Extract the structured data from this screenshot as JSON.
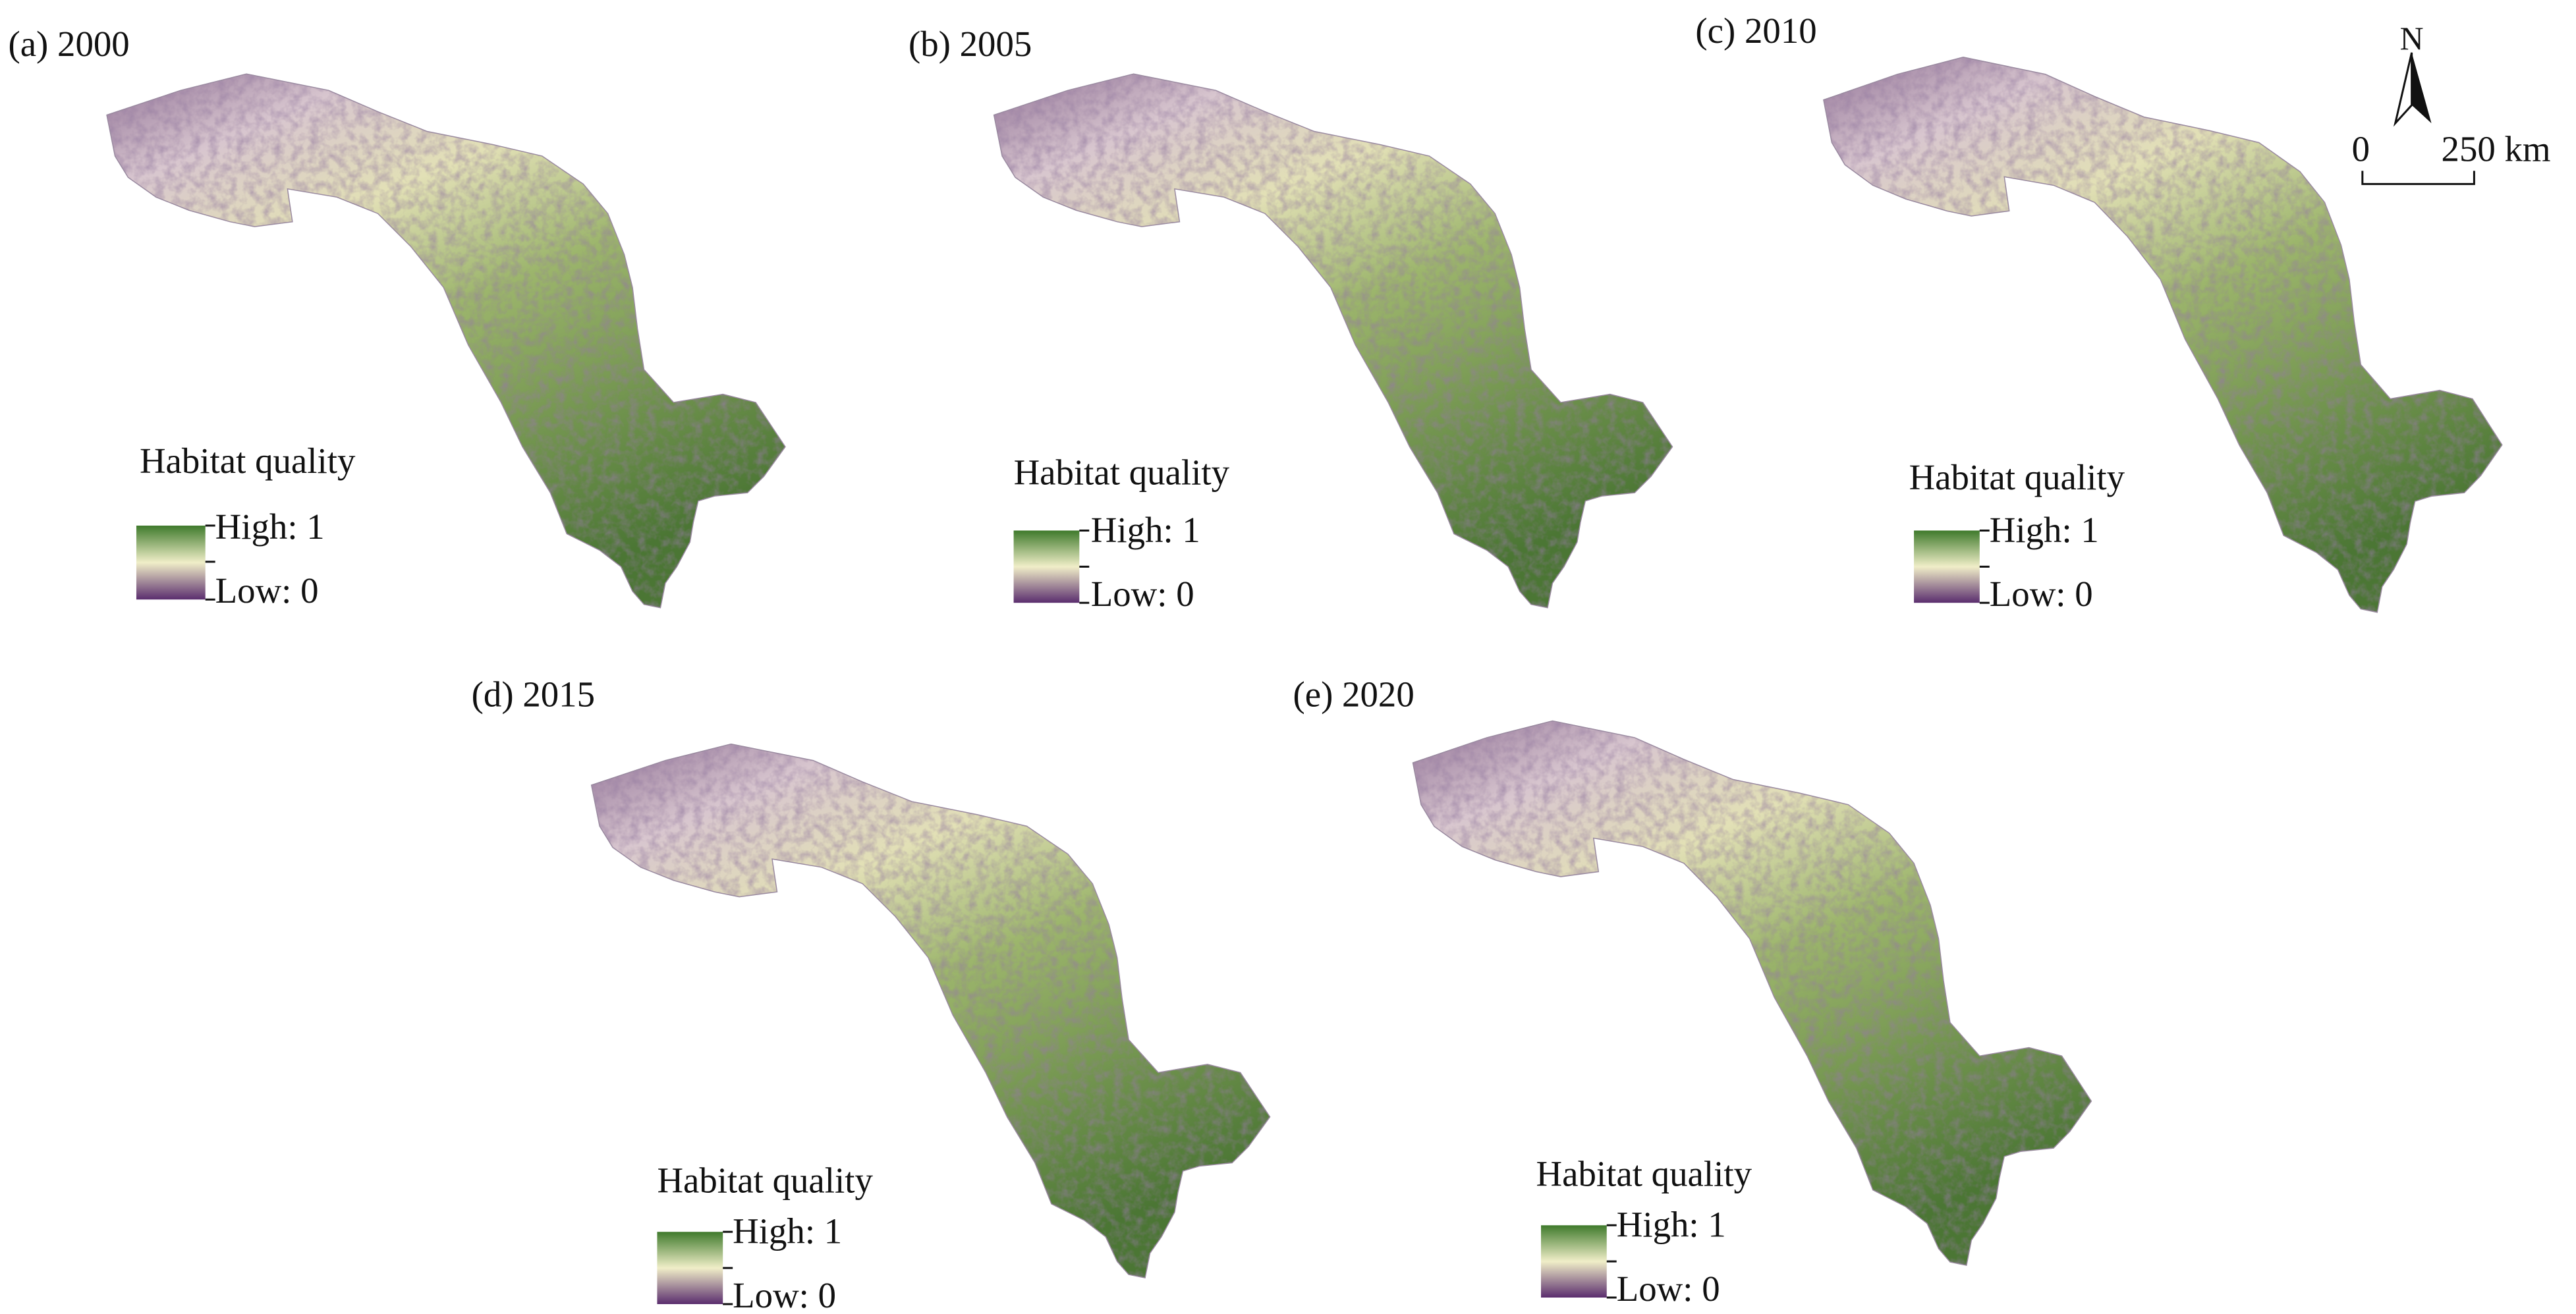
{
  "panels": [
    {
      "label": "(a) 2000",
      "legend": {
        "title": "Habitat quality",
        "high": "High: 1",
        "low": "Low: 0"
      }
    },
    {
      "label": "(b) 2005",
      "legend": {
        "title": "Habitat quality",
        "high": "High: 1",
        "low": "Low: 0"
      }
    },
    {
      "label": "(c) 2010",
      "legend": {
        "title": "Habitat quality",
        "high": "High: 1",
        "low": "Low: 0"
      }
    },
    {
      "label": "(d) 2015",
      "legend": {
        "title": "Habitat quality",
        "high": "High: 1",
        "low": "Low: 0"
      }
    },
    {
      "label": "(e) 2020",
      "legend": {
        "title": "Habitat quality",
        "high": "High: 1",
        "low": "Low: 0"
      }
    }
  ],
  "north_arrow": {
    "label": "N"
  },
  "scale_bar": {
    "start": "0",
    "end": "250 km"
  }
}
